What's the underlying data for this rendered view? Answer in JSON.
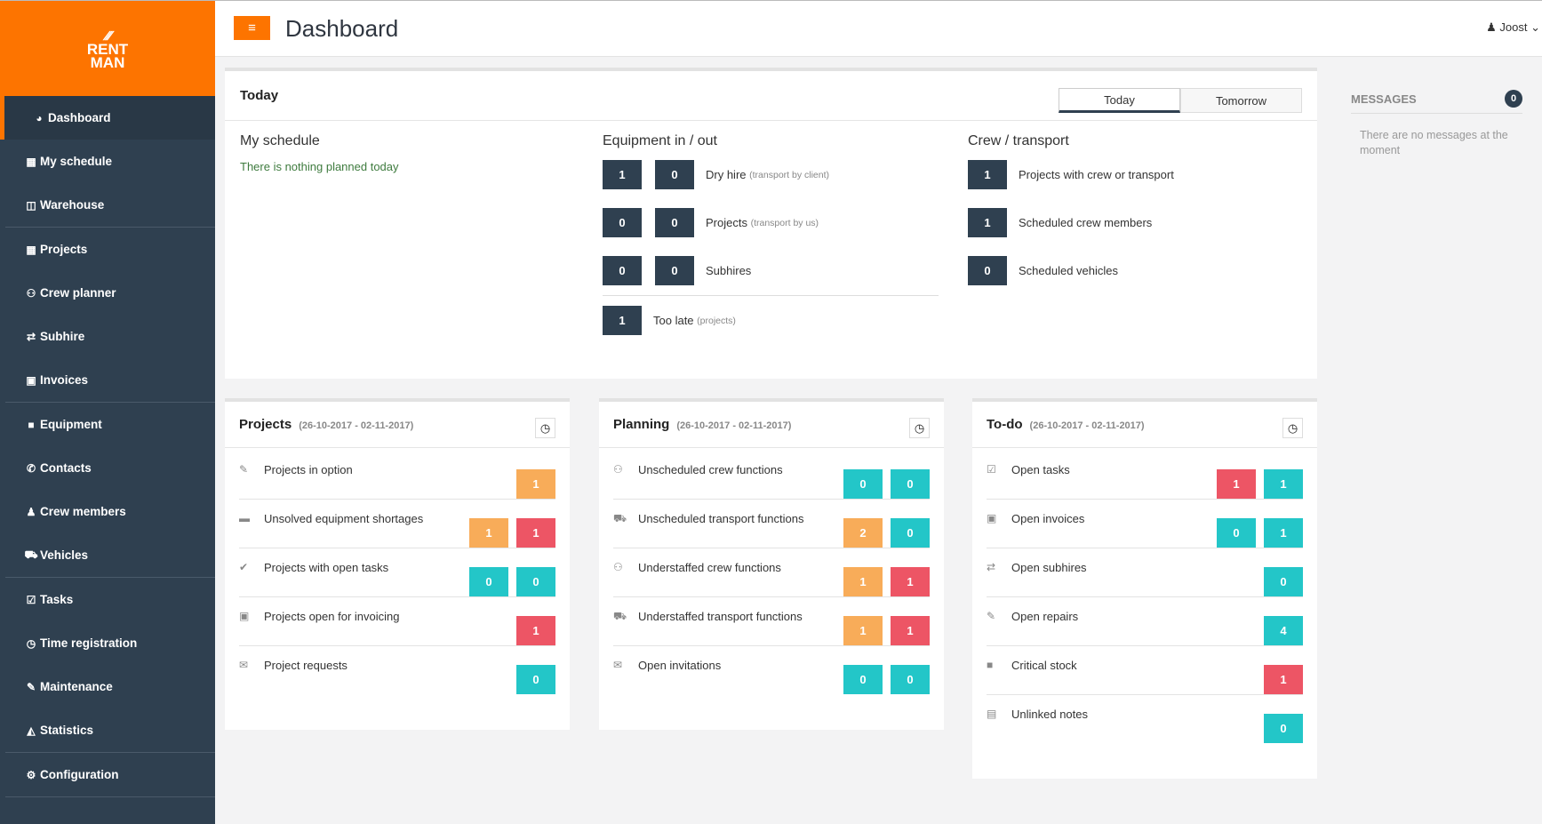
{
  "logo": {
    "text1": "RENT",
    "text2": "MAN"
  },
  "sidebar": {
    "items": [
      {
        "label": "Dashboard",
        "icon": "dashboard-icon",
        "glyph": "◕",
        "active": true
      },
      {
        "label": "My schedule",
        "icon": "calendar-icon",
        "glyph": "▦"
      },
      {
        "label": "Warehouse",
        "icon": "warehouse-icon",
        "glyph": "◫",
        "sep": true
      },
      {
        "label": "Projects",
        "icon": "grid-icon",
        "glyph": "▦"
      },
      {
        "label": "Crew planner",
        "icon": "users-icon",
        "glyph": "⚇"
      },
      {
        "label": "Subhire",
        "icon": "exchange-icon",
        "glyph": "⇄"
      },
      {
        "label": "Invoices",
        "icon": "money-icon",
        "glyph": "▣",
        "sep": true
      },
      {
        "label": "Equipment",
        "icon": "archive-icon",
        "glyph": "■"
      },
      {
        "label": "Contacts",
        "icon": "phone-icon",
        "glyph": "✆"
      },
      {
        "label": "Crew members",
        "icon": "user-icon",
        "glyph": "♟"
      },
      {
        "label": "Vehicles",
        "icon": "truck-icon",
        "glyph": "⛟",
        "sep": true
      },
      {
        "label": "Tasks",
        "icon": "check-square-icon",
        "glyph": "☑"
      },
      {
        "label": "Time registration",
        "icon": "clock-icon",
        "glyph": "◷"
      },
      {
        "label": "Maintenance",
        "icon": "wrench-icon",
        "glyph": "✎"
      },
      {
        "label": "Statistics",
        "icon": "chart-icon",
        "glyph": "◭",
        "sep": true
      },
      {
        "label": "Configuration",
        "icon": "gear-icon",
        "glyph": "⚙",
        "sep": true
      }
    ]
  },
  "header": {
    "title": "Dashboard",
    "menu_glyph": "≡",
    "user": "Joost"
  },
  "today": {
    "title": "Today",
    "toggle": [
      "Today",
      "Tomorrow"
    ],
    "schedule": {
      "title": "My schedule",
      "empty": "There is nothing planned today"
    },
    "equipment": {
      "title": "Equipment in / out",
      "rows": [
        {
          "a": "1",
          "b": "0",
          "label": "Dry hire",
          "note": "(transport by client)"
        },
        {
          "a": "0",
          "b": "0",
          "label": "Projects",
          "note": "(transport by us)"
        },
        {
          "a": "0",
          "b": "0",
          "label": "Subhires",
          "note": ""
        }
      ],
      "late": {
        "a": "1",
        "label": "Too late",
        "note": "(projects)"
      }
    },
    "crew": {
      "title": "Crew / transport",
      "rows": [
        {
          "a": "1",
          "label": "Projects with crew or transport"
        },
        {
          "a": "1",
          "label": "Scheduled crew members"
        },
        {
          "a": "0",
          "label": "Scheduled vehicles"
        }
      ]
    }
  },
  "cards": [
    {
      "title": "Projects",
      "date": "(26-10-2017 - 02-11-2017)",
      "rows": [
        {
          "icon": "edit-icon",
          "glyph": "✎",
          "label": "Projects in option",
          "values": [
            {
              "v": "1",
              "c": "orange"
            }
          ]
        },
        {
          "icon": "briefcase-icon",
          "glyph": "▬",
          "label": "Unsolved equipment shortages",
          "values": [
            {
              "v": "1",
              "c": "orange"
            },
            {
              "v": "1",
              "c": "red"
            }
          ]
        },
        {
          "icon": "check-icon",
          "glyph": "✔",
          "label": "Projects with open tasks",
          "values": [
            {
              "v": "0",
              "c": "teal"
            },
            {
              "v": "0",
              "c": "teal"
            }
          ]
        },
        {
          "icon": "money-icon",
          "glyph": "▣",
          "label": "Projects open for invoicing",
          "values": [
            {
              "v": "1",
              "c": "red"
            }
          ]
        },
        {
          "icon": "envelope-icon",
          "glyph": "✉",
          "label": "Project requests",
          "values": [
            {
              "v": "0",
              "c": "teal"
            }
          ]
        }
      ]
    },
    {
      "title": "Planning",
      "date": "(26-10-2017 - 02-11-2017)",
      "rows": [
        {
          "icon": "users-icon",
          "glyph": "⚇",
          "label": "Unscheduled crew functions",
          "values": [
            {
              "v": "0",
              "c": "teal"
            },
            {
              "v": "0",
              "c": "teal"
            }
          ]
        },
        {
          "icon": "truck-icon",
          "glyph": "⛟",
          "label": "Unscheduled transport functions",
          "values": [
            {
              "v": "2",
              "c": "orange"
            },
            {
              "v": "0",
              "c": "teal"
            }
          ]
        },
        {
          "icon": "users-icon",
          "glyph": "⚇",
          "label": "Understaffed crew functions",
          "values": [
            {
              "v": "1",
              "c": "orange"
            },
            {
              "v": "1",
              "c": "red"
            }
          ]
        },
        {
          "icon": "truck-icon",
          "glyph": "⛟",
          "label": "Understaffed transport functions",
          "values": [
            {
              "v": "1",
              "c": "orange"
            },
            {
              "v": "1",
              "c": "red"
            }
          ]
        },
        {
          "icon": "envelope-icon",
          "glyph": "✉",
          "label": "Open invitations",
          "values": [
            {
              "v": "0",
              "c": "teal"
            },
            {
              "v": "0",
              "c": "teal"
            }
          ]
        }
      ]
    },
    {
      "title": "To-do",
      "date": "(26-10-2017 - 02-11-2017)",
      "rows": [
        {
          "icon": "check-square-icon",
          "glyph": "☑",
          "label": "Open tasks",
          "values": [
            {
              "v": "1",
              "c": "red"
            },
            {
              "v": "1",
              "c": "teal"
            }
          ]
        },
        {
          "icon": "money-icon",
          "glyph": "▣",
          "label": "Open invoices",
          "values": [
            {
              "v": "0",
              "c": "teal"
            },
            {
              "v": "1",
              "c": "teal"
            }
          ]
        },
        {
          "icon": "exchange-icon",
          "glyph": "⇄",
          "label": "Open subhires",
          "values": [
            {
              "v": "0",
              "c": "teal"
            }
          ]
        },
        {
          "icon": "wrench-icon",
          "glyph": "✎",
          "label": "Open repairs",
          "values": [
            {
              "v": "4",
              "c": "teal"
            }
          ]
        },
        {
          "icon": "archive-icon",
          "glyph": "■",
          "label": "Critical stock",
          "values": [
            {
              "v": "1",
              "c": "red"
            }
          ]
        },
        {
          "icon": "note-icon",
          "glyph": "▤",
          "label": "Unlinked notes",
          "values": [
            {
              "v": "0",
              "c": "teal"
            }
          ]
        }
      ]
    }
  ],
  "messages": {
    "title": "MESSAGES",
    "count": "0",
    "empty": "There are no messages at the moment"
  },
  "colors": {
    "brand": "#fd7400",
    "sidebar": "#2f4050",
    "orange": "#f8ac59",
    "red": "#ed5565",
    "teal": "#23c6c8"
  }
}
